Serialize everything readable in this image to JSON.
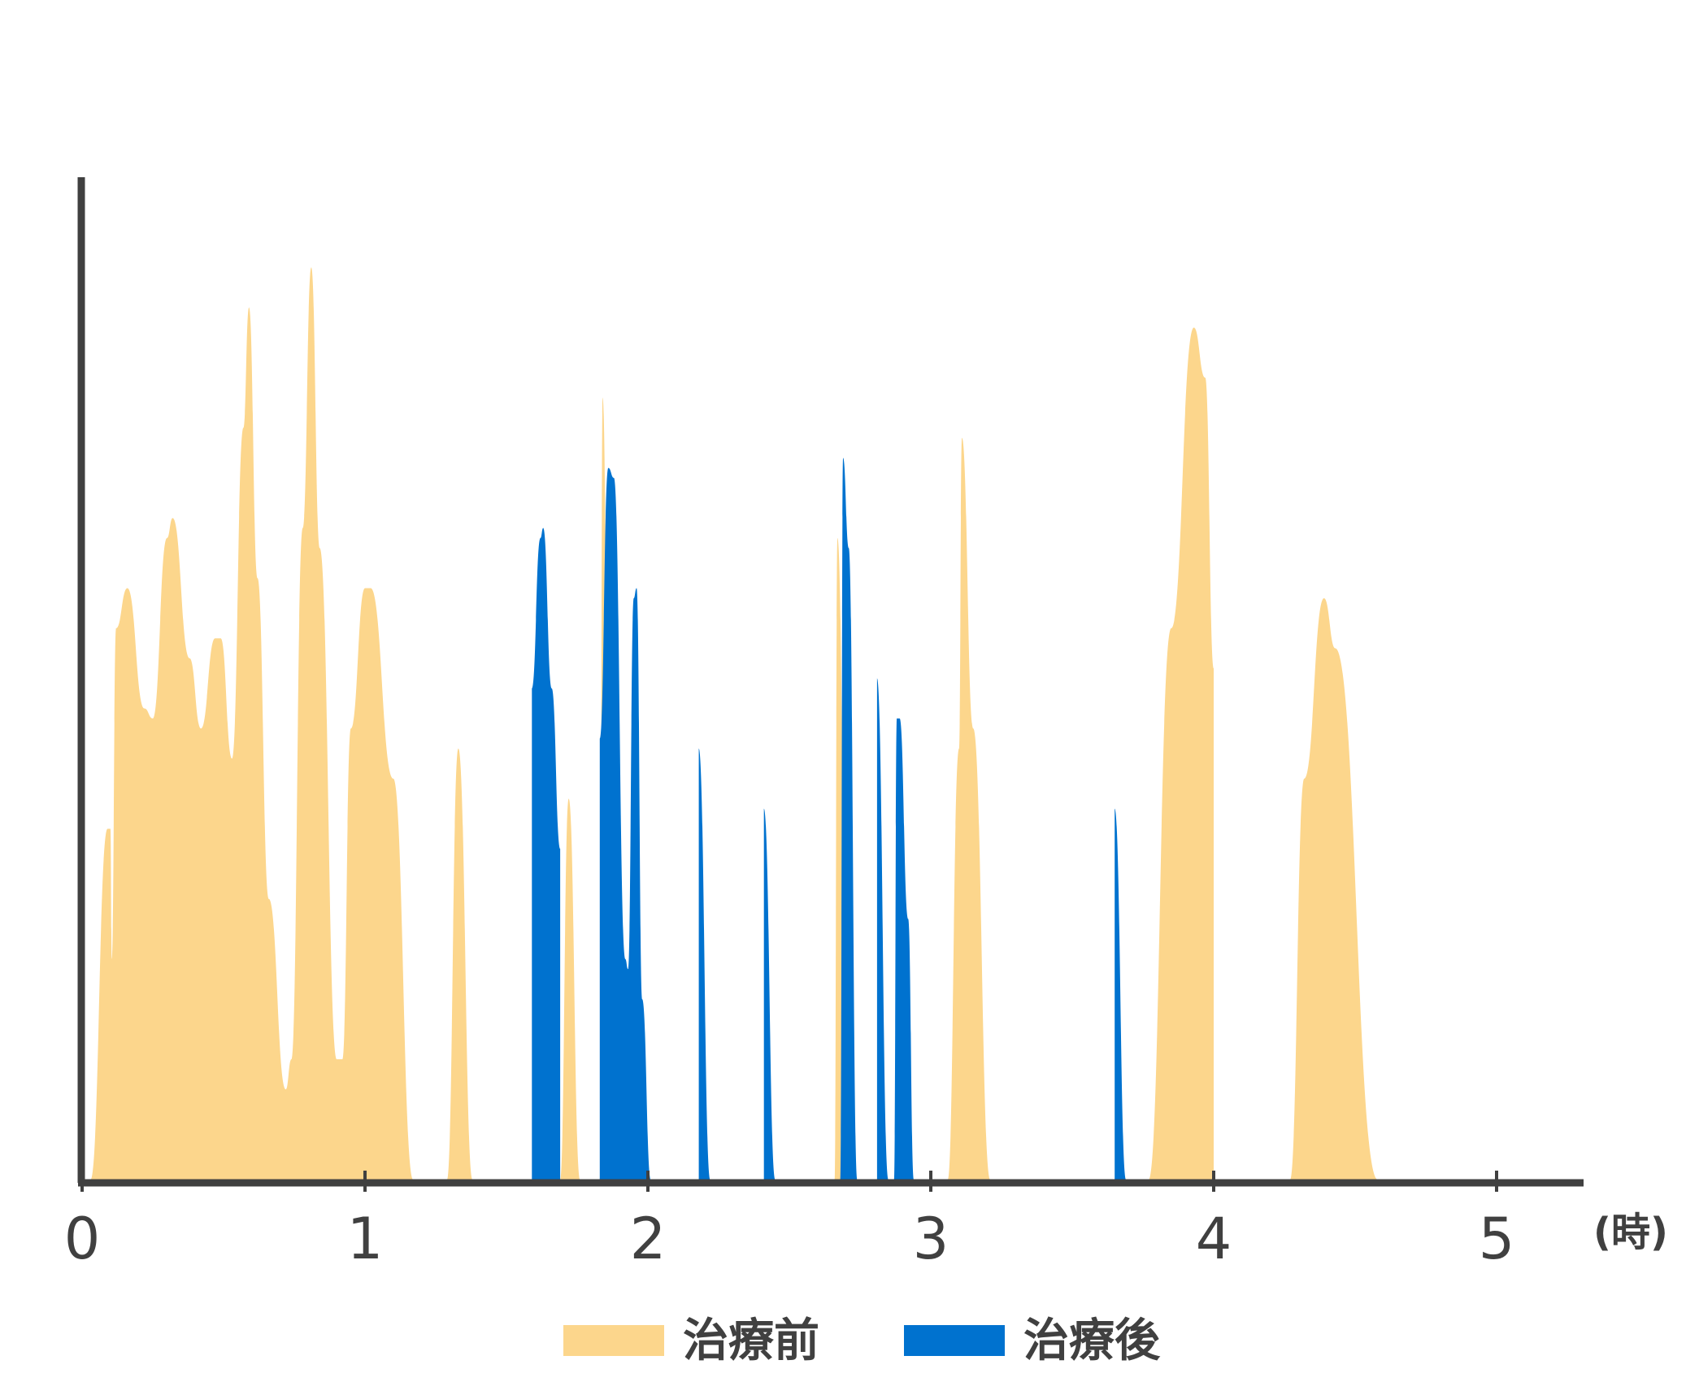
{
  "chart_data": {
    "type": "area",
    "title": "",
    "xlabel": "",
    "ylabel": "",
    "x_unit_label": "(時)",
    "xlim": [
      0,
      5.3
    ],
    "ylim": [
      0,
      1
    ],
    "x_ticks": [
      0,
      1,
      2,
      3,
      4,
      5
    ],
    "x_tick_labels": [
      "0",
      "1",
      "2",
      "3",
      "4",
      "5"
    ],
    "grid": false,
    "legend_position": "bottom",
    "series": [
      {
        "name": "治療前",
        "color": "#fcd68c",
        "points": [
          [
            0.03,
            0
          ],
          [
            0.09,
            0.35
          ],
          [
            0.1,
            0.35
          ],
          [
            0.105,
            0.22
          ],
          [
            0.12,
            0.55
          ],
          [
            0.16,
            0.59
          ],
          [
            0.22,
            0.47
          ],
          [
            0.25,
            0.46
          ],
          [
            0.3,
            0.64
          ],
          [
            0.32,
            0.66
          ],
          [
            0.38,
            0.52
          ],
          [
            0.42,
            0.45
          ],
          [
            0.47,
            0.54
          ],
          [
            0.49,
            0.54
          ],
          [
            0.53,
            0.42
          ],
          [
            0.57,
            0.75
          ],
          [
            0.59,
            0.87
          ],
          [
            0.62,
            0.6
          ],
          [
            0.66,
            0.28
          ],
          [
            0.72,
            0.09
          ],
          [
            0.74,
            0.12
          ],
          [
            0.78,
            0.65
          ],
          [
            0.81,
            0.91
          ],
          [
            0.84,
            0.63
          ],
          [
            0.9,
            0.12
          ],
          [
            0.92,
            0.12
          ],
          [
            0.95,
            0.45
          ],
          [
            1.0,
            0.59
          ],
          [
            1.02,
            0.59
          ],
          [
            1.1,
            0.4
          ],
          [
            1.17,
            0
          ],
          [
            1.29,
            0
          ],
          [
            1.33,
            0.43
          ],
          [
            1.38,
            0
          ],
          [
            1.69,
            0
          ],
          [
            1.72,
            0.38
          ],
          [
            1.76,
            0
          ],
          [
            1.83,
            0
          ],
          [
            1.84,
            0.78
          ],
          [
            1.86,
            0.5
          ],
          [
            1.88,
            0
          ],
          [
            2.66,
            0
          ],
          [
            2.67,
            0.64
          ],
          [
            2.71,
            0
          ],
          [
            3.06,
            0
          ],
          [
            3.1,
            0.43
          ],
          [
            3.11,
            0.74
          ],
          [
            3.15,
            0.45
          ],
          [
            3.21,
            0
          ],
          [
            3.77,
            0
          ],
          [
            3.85,
            0.55
          ],
          [
            3.93,
            0.85
          ],
          [
            3.97,
            0.8
          ],
          [
            4.0,
            0.51
          ],
          [
            4.0,
            0
          ],
          [
            4.27,
            0
          ],
          [
            4.32,
            0.4
          ],
          [
            4.39,
            0.58
          ],
          [
            4.43,
            0.53
          ],
          [
            4.58,
            0
          ]
        ]
      },
      {
        "name": "治療後",
        "color": "#0072cf",
        "points": [
          [
            1.59,
            0
          ],
          [
            1.59,
            0.49
          ],
          [
            1.62,
            0.64
          ],
          [
            1.63,
            0.65
          ],
          [
            1.66,
            0.49
          ],
          [
            1.69,
            0.33
          ],
          [
            1.69,
            0
          ],
          [
            1.83,
            0
          ],
          [
            1.83,
            0.44
          ],
          [
            1.86,
            0.71
          ],
          [
            1.88,
            0.7
          ],
          [
            1.92,
            0.22
          ],
          [
            1.93,
            0.21
          ],
          [
            1.95,
            0.58
          ],
          [
            1.96,
            0.59
          ],
          [
            1.98,
            0.18
          ],
          [
            2.01,
            0
          ],
          [
            2.18,
            0
          ],
          [
            2.18,
            0.43
          ],
          [
            2.22,
            0
          ],
          [
            2.41,
            0
          ],
          [
            2.41,
            0.37
          ],
          [
            2.45,
            0
          ],
          [
            2.68,
            0
          ],
          [
            2.69,
            0.72
          ],
          [
            2.71,
            0.63
          ],
          [
            2.74,
            0
          ],
          [
            2.81,
            0
          ],
          [
            2.81,
            0.5
          ],
          [
            2.85,
            0
          ],
          [
            2.87,
            0
          ],
          [
            2.88,
            0.46
          ],
          [
            2.89,
            0.46
          ],
          [
            2.92,
            0.26
          ],
          [
            2.94,
            0
          ],
          [
            3.65,
            0
          ],
          [
            3.65,
            0.37
          ],
          [
            3.69,
            0
          ]
        ]
      }
    ]
  }
}
